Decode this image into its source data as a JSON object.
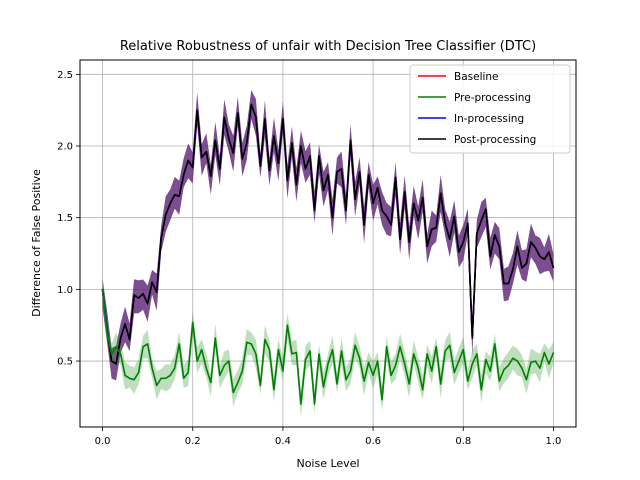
{
  "chart_data": {
    "type": "line",
    "title": "Relative Robustness of unfair with Decision Tree Classifier (DTC)",
    "xlabel": "Noise Level",
    "ylabel": "Difference of False Positive",
    "xlim": [
      -0.05,
      1.05
    ],
    "ylim": [
      0.04,
      2.6
    ],
    "xticks": [
      "0.0",
      "0.2",
      "0.4",
      "0.6",
      "0.8",
      "1.0"
    ],
    "xtick_values": [
      0,
      0.2,
      0.4,
      0.6,
      0.8,
      1.0
    ],
    "yticks": [
      "0.5",
      "1.0",
      "1.5",
      "2.0",
      "2.5"
    ],
    "ytick_values": [
      0.5,
      1.0,
      1.5,
      2.0,
      2.5
    ],
    "grid": true,
    "legend_position": "top-right",
    "colors": {
      "Baseline": "#ff0000",
      "Pre-processing": "#008000",
      "In-processing": "#0000ff",
      "Post-processing": "#000000",
      "band_post": "#5b2273",
      "band_pre": "#3a9a3a"
    },
    "series": [
      {
        "name": "Baseline",
        "x": [
          0.0,
          0.01,
          0.02,
          0.03,
          0.04,
          0.05,
          0.06,
          0.07,
          0.08,
          0.09,
          0.1,
          0.11,
          0.12,
          0.13,
          0.14,
          0.15,
          0.16,
          0.17,
          0.18,
          0.19,
          0.2,
          0.21,
          0.22,
          0.23,
          0.24,
          0.25,
          0.26,
          0.27,
          0.28,
          0.29,
          0.3,
          0.31,
          0.32,
          0.33,
          0.34,
          0.35,
          0.36,
          0.37,
          0.38,
          0.39,
          0.4,
          0.41,
          0.42,
          0.43,
          0.44,
          0.45,
          0.46,
          0.47,
          0.48,
          0.49,
          0.5,
          0.51,
          0.52,
          0.53,
          0.54,
          0.55,
          0.56,
          0.57,
          0.58,
          0.59,
          0.6,
          0.61,
          0.62,
          0.63,
          0.64,
          0.65,
          0.66,
          0.67,
          0.68,
          0.69,
          0.7,
          0.71,
          0.72,
          0.73,
          0.74,
          0.75,
          0.76,
          0.77,
          0.78,
          0.79,
          0.8,
          0.81,
          0.82,
          0.83,
          0.84,
          0.85,
          0.86,
          0.87,
          0.88,
          0.89,
          0.9,
          0.91,
          0.92,
          0.93,
          0.94,
          0.95,
          0.96,
          0.97,
          0.98,
          0.99,
          1.0
        ],
        "y": [
          1.0,
          0.72,
          0.5,
          0.48,
          0.66,
          0.76,
          0.65,
          0.96,
          0.94,
          0.97,
          0.9,
          1.05,
          0.98,
          1.36,
          1.52,
          1.6,
          1.66,
          1.65,
          1.8,
          1.9,
          1.85,
          2.25,
          1.92,
          1.96,
          1.79,
          2.04,
          1.84,
          2.2,
          2.05,
          1.95,
          2.23,
          1.91,
          2.02,
          2.29,
          2.2,
          1.86,
          2.19,
          1.83,
          2.07,
          1.88,
          2.19,
          1.76,
          2.02,
          1.73,
          2.0,
          1.84,
          1.93,
          1.55,
          1.93,
          1.69,
          1.8,
          1.5,
          1.82,
          1.84,
          1.55,
          2.04,
          1.63,
          1.82,
          1.45,
          1.8,
          1.6,
          1.71,
          1.55,
          1.51,
          1.45,
          1.78,
          1.35,
          1.68,
          1.33,
          1.6,
          1.48,
          1.64,
          1.3,
          1.42,
          1.43,
          1.67,
          1.46,
          1.35,
          1.51,
          1.26,
          1.33,
          1.46,
          0.66,
          1.39,
          1.48,
          1.56,
          1.23,
          1.38,
          1.3,
          1.04,
          1.04,
          1.14,
          1.3,
          1.15,
          1.18,
          1.33,
          1.29,
          1.23,
          1.21,
          1.26,
          1.15
        ]
      },
      {
        "name": "In-processing",
        "x": [
          0.0,
          0.01,
          0.02,
          0.03,
          0.04,
          0.05,
          0.06,
          0.07,
          0.08,
          0.09,
          0.1,
          0.11,
          0.12,
          0.13,
          0.14,
          0.15,
          0.16,
          0.17,
          0.18,
          0.19,
          0.2,
          0.21,
          0.22,
          0.23,
          0.24,
          0.25,
          0.26,
          0.27,
          0.28,
          0.29,
          0.3,
          0.31,
          0.32,
          0.33,
          0.34,
          0.35,
          0.36,
          0.37,
          0.38,
          0.39,
          0.4,
          0.41,
          0.42,
          0.43,
          0.44,
          0.45,
          0.46,
          0.47,
          0.48,
          0.49,
          0.5,
          0.51,
          0.52,
          0.53,
          0.54,
          0.55,
          0.56,
          0.57,
          0.58,
          0.59,
          0.6,
          0.61,
          0.62,
          0.63,
          0.64,
          0.65,
          0.66,
          0.67,
          0.68,
          0.69,
          0.7,
          0.71,
          0.72,
          0.73,
          0.74,
          0.75,
          0.76,
          0.77,
          0.78,
          0.79,
          0.8,
          0.81,
          0.82,
          0.83,
          0.84,
          0.85,
          0.86,
          0.87,
          0.88,
          0.89,
          0.9,
          0.91,
          0.92,
          0.93,
          0.94,
          0.95,
          0.96,
          0.97,
          0.98,
          0.99,
          1.0
        ],
        "y": [
          1.0,
          0.72,
          0.5,
          0.48,
          0.66,
          0.76,
          0.65,
          0.96,
          0.94,
          0.97,
          0.9,
          1.05,
          0.98,
          1.36,
          1.52,
          1.6,
          1.66,
          1.65,
          1.8,
          1.9,
          1.85,
          2.25,
          1.92,
          1.96,
          1.79,
          2.04,
          1.84,
          2.2,
          2.05,
          1.95,
          2.23,
          1.91,
          2.02,
          2.29,
          2.2,
          1.86,
          2.19,
          1.83,
          2.07,
          1.88,
          2.19,
          1.76,
          2.02,
          1.73,
          2.0,
          1.84,
          1.93,
          1.55,
          1.93,
          1.69,
          1.8,
          1.5,
          1.82,
          1.84,
          1.55,
          2.04,
          1.63,
          1.82,
          1.45,
          1.8,
          1.6,
          1.71,
          1.55,
          1.51,
          1.45,
          1.78,
          1.35,
          1.68,
          1.33,
          1.6,
          1.48,
          1.64,
          1.3,
          1.42,
          1.43,
          1.67,
          1.46,
          1.35,
          1.51,
          1.26,
          1.33,
          1.46,
          0.66,
          1.39,
          1.48,
          1.56,
          1.23,
          1.38,
          1.3,
          1.04,
          1.04,
          1.14,
          1.3,
          1.15,
          1.18,
          1.33,
          1.29,
          1.23,
          1.21,
          1.26,
          1.15
        ]
      },
      {
        "name": "Post-processing",
        "x": [
          0.0,
          0.01,
          0.02,
          0.03,
          0.04,
          0.05,
          0.06,
          0.07,
          0.08,
          0.09,
          0.1,
          0.11,
          0.12,
          0.13,
          0.14,
          0.15,
          0.16,
          0.17,
          0.18,
          0.19,
          0.2,
          0.21,
          0.22,
          0.23,
          0.24,
          0.25,
          0.26,
          0.27,
          0.28,
          0.29,
          0.3,
          0.31,
          0.32,
          0.33,
          0.34,
          0.35,
          0.36,
          0.37,
          0.38,
          0.39,
          0.4,
          0.41,
          0.42,
          0.43,
          0.44,
          0.45,
          0.46,
          0.47,
          0.48,
          0.49,
          0.5,
          0.51,
          0.52,
          0.53,
          0.54,
          0.55,
          0.56,
          0.57,
          0.58,
          0.59,
          0.6,
          0.61,
          0.62,
          0.63,
          0.64,
          0.65,
          0.66,
          0.67,
          0.68,
          0.69,
          0.7,
          0.71,
          0.72,
          0.73,
          0.74,
          0.75,
          0.76,
          0.77,
          0.78,
          0.79,
          0.8,
          0.81,
          0.82,
          0.83,
          0.84,
          0.85,
          0.86,
          0.87,
          0.88,
          0.89,
          0.9,
          0.91,
          0.92,
          0.93,
          0.94,
          0.95,
          0.96,
          0.97,
          0.98,
          0.99,
          1.0
        ],
        "y": [
          1.0,
          0.72,
          0.5,
          0.48,
          0.66,
          0.76,
          0.65,
          0.96,
          0.94,
          0.97,
          0.9,
          1.05,
          0.98,
          1.36,
          1.52,
          1.6,
          1.66,
          1.65,
          1.8,
          1.9,
          1.85,
          2.25,
          1.92,
          1.96,
          1.79,
          2.04,
          1.84,
          2.2,
          2.05,
          1.95,
          2.23,
          1.91,
          2.02,
          2.29,
          2.2,
          1.86,
          2.19,
          1.83,
          2.07,
          1.88,
          2.19,
          1.76,
          2.02,
          1.73,
          2.0,
          1.84,
          1.93,
          1.55,
          1.93,
          1.69,
          1.8,
          1.5,
          1.82,
          1.84,
          1.55,
          2.04,
          1.63,
          1.82,
          1.45,
          1.8,
          1.6,
          1.71,
          1.55,
          1.51,
          1.45,
          1.78,
          1.35,
          1.68,
          1.33,
          1.6,
          1.48,
          1.64,
          1.3,
          1.42,
          1.43,
          1.67,
          1.46,
          1.35,
          1.51,
          1.26,
          1.33,
          1.46,
          0.66,
          1.39,
          1.48,
          1.56,
          1.23,
          1.38,
          1.3,
          1.04,
          1.04,
          1.14,
          1.3,
          1.15,
          1.18,
          1.33,
          1.29,
          1.23,
          1.21,
          1.26,
          1.15
        ],
        "band": 0.13
      },
      {
        "name": "Pre-processing",
        "x": [
          0.0,
          0.01,
          0.02,
          0.03,
          0.04,
          0.05,
          0.06,
          0.07,
          0.08,
          0.09,
          0.1,
          0.11,
          0.12,
          0.13,
          0.14,
          0.15,
          0.16,
          0.17,
          0.18,
          0.19,
          0.2,
          0.21,
          0.22,
          0.23,
          0.24,
          0.25,
          0.26,
          0.27,
          0.28,
          0.29,
          0.3,
          0.31,
          0.32,
          0.33,
          0.34,
          0.35,
          0.36,
          0.37,
          0.38,
          0.39,
          0.4,
          0.41,
          0.42,
          0.43,
          0.44,
          0.45,
          0.46,
          0.47,
          0.48,
          0.49,
          0.5,
          0.51,
          0.52,
          0.53,
          0.54,
          0.55,
          0.56,
          0.57,
          0.58,
          0.59,
          0.6,
          0.61,
          0.62,
          0.63,
          0.64,
          0.65,
          0.66,
          0.67,
          0.68,
          0.69,
          0.7,
          0.71,
          0.72,
          0.73,
          0.74,
          0.75,
          0.76,
          0.77,
          0.78,
          0.79,
          0.8,
          0.81,
          0.82,
          0.83,
          0.84,
          0.85,
          0.86,
          0.87,
          0.88,
          0.89,
          0.9,
          0.91,
          0.92,
          0.93,
          0.94,
          0.95,
          0.96,
          0.97,
          0.98,
          0.99,
          1.0
        ],
        "y": [
          1.0,
          0.7,
          0.55,
          0.6,
          0.55,
          0.4,
          0.38,
          0.37,
          0.42,
          0.6,
          0.62,
          0.45,
          0.33,
          0.38,
          0.38,
          0.4,
          0.45,
          0.62,
          0.38,
          0.42,
          0.77,
          0.5,
          0.58,
          0.45,
          0.35,
          0.66,
          0.4,
          0.47,
          0.5,
          0.28,
          0.35,
          0.43,
          0.63,
          0.62,
          0.55,
          0.33,
          0.65,
          0.58,
          0.3,
          0.58,
          0.43,
          0.75,
          0.55,
          0.56,
          0.2,
          0.51,
          0.57,
          0.2,
          0.55,
          0.32,
          0.48,
          0.58,
          0.34,
          0.57,
          0.37,
          0.43,
          0.61,
          0.52,
          0.36,
          0.49,
          0.4,
          0.5,
          0.23,
          0.6,
          0.4,
          0.47,
          0.6,
          0.48,
          0.34,
          0.55,
          0.45,
          0.3,
          0.55,
          0.43,
          0.6,
          0.34,
          0.57,
          0.61,
          0.42,
          0.5,
          0.58,
          0.36,
          0.48,
          0.55,
          0.3,
          0.51,
          0.43,
          0.62,
          0.36,
          0.44,
          0.47,
          0.52,
          0.5,
          0.45,
          0.37,
          0.49,
          0.5,
          0.45,
          0.56,
          0.48,
          0.56
        ],
        "band": 0.1
      }
    ],
    "legend": [
      "Baseline",
      "Pre-processing",
      "In-processing",
      "Post-processing"
    ]
  }
}
